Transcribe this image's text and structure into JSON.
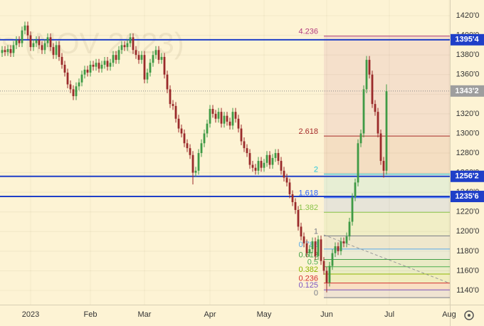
{
  "chart_data": {
    "type": "candlestick",
    "watermark": "rs (NOV 2023)",
    "up_color": "#3f9a45",
    "down_color": "#9a2a2a",
    "xlim": [
      -10.75,
      147.25
    ],
    "xticks": [
      {
        "value": 0,
        "label": "2023"
      },
      {
        "value": 21,
        "label": "Feb"
      },
      {
        "value": 40,
        "label": "Mar"
      },
      {
        "value": 63,
        "label": "Apr"
      },
      {
        "value": 82,
        "label": "May"
      },
      {
        "value": 104,
        "label": "Jun"
      },
      {
        "value": 126,
        "label": "Jul"
      },
      {
        "value": 147,
        "label": "Aug"
      }
    ],
    "ylim": [
      1125.5,
      1436
    ],
    "yticks": [
      {
        "value": 1140,
        "label": "1140'0"
      },
      {
        "value": 1160,
        "label": "1160'0"
      },
      {
        "value": 1180,
        "label": "1180'0"
      },
      {
        "value": 1200,
        "label": "1200'0"
      },
      {
        "value": 1220,
        "label": "1220'0"
      },
      {
        "value": 1240,
        "label": "1240'0"
      },
      {
        "value": 1260,
        "label": "1260'0"
      },
      {
        "value": 1280,
        "label": "1280'0"
      },
      {
        "value": 1300,
        "label": "1300'0"
      },
      {
        "value": 1320,
        "label": "1320'0"
      },
      {
        "value": 1340,
        "label": "1340'0"
      },
      {
        "value": 1360,
        "label": "1360'0"
      },
      {
        "value": 1380,
        "label": "1380'0"
      },
      {
        "value": 1400,
        "label": "1400'0"
      },
      {
        "value": 1420,
        "label": "1420'0"
      }
    ],
    "grid": true,
    "x": [
      -10,
      -9,
      -8,
      -7,
      -6,
      -5,
      -4,
      -3,
      -2,
      -1,
      0,
      1,
      2,
      3,
      4,
      5,
      6,
      7,
      8,
      9,
      10,
      11,
      12,
      13,
      14,
      15,
      16,
      17,
      18,
      19,
      20,
      21,
      22,
      23,
      24,
      25,
      26,
      27,
      28,
      29,
      30,
      31,
      32,
      33,
      34,
      35,
      36,
      37,
      38,
      39,
      40,
      41,
      42,
      43,
      44,
      45,
      46,
      47,
      48,
      49,
      50,
      51,
      52,
      53,
      54,
      55,
      56,
      57,
      58,
      59,
      60,
      61,
      62,
      63,
      64,
      65,
      66,
      67,
      68,
      69,
      70,
      71,
      72,
      73,
      74,
      75,
      76,
      77,
      78,
      79,
      80,
      81,
      82,
      83,
      84,
      85,
      86,
      87,
      88,
      89,
      90,
      91,
      92,
      93,
      94,
      95,
      96,
      97,
      98,
      99,
      100,
      101,
      102,
      103,
      104,
      105,
      106,
      107,
      108,
      109,
      110,
      111,
      112,
      113,
      114,
      115,
      116,
      117,
      118,
      119,
      120,
      121,
      122,
      123,
      124,
      125
    ],
    "open": [
      1382,
      1385,
      1383,
      1386,
      1382,
      1390,
      1395,
      1392,
      1405,
      1410,
      1400,
      1388,
      1392,
      1395,
      1390,
      1385,
      1392,
      1398,
      1388,
      1380,
      1390,
      1378,
      1370,
      1362,
      1350,
      1345,
      1338,
      1348,
      1352,
      1360,
      1365,
      1362,
      1370,
      1368,
      1372,
      1366,
      1370,
      1374,
      1368,
      1372,
      1380,
      1375,
      1385,
      1390,
      1388,
      1392,
      1398,
      1385,
      1380,
      1375,
      1380,
      1355,
      1362,
      1372,
      1380,
      1385,
      1375,
      1378,
      1360,
      1345,
      1330,
      1328,
      1315,
      1305,
      1300,
      1290,
      1285,
      1278,
      1260,
      1262,
      1280,
      1290,
      1300,
      1310,
      1325,
      1320,
      1315,
      1322,
      1310,
      1318,
      1312,
      1308,
      1322,
      1315,
      1305,
      1292,
      1285,
      1280,
      1268,
      1265,
      1262,
      1272,
      1265,
      1270,
      1278,
      1268,
      1275,
      1280,
      1272,
      1262,
      1255,
      1250,
      1238,
      1230,
      1222,
      1205,
      1195,
      1188,
      1178,
      1182,
      1190,
      1175,
      1192,
      1170,
      1160,
      1148,
      1165,
      1178,
      1185,
      1180,
      1190,
      1188,
      1195,
      1210,
      1235,
      1250,
      1290,
      1300,
      1345,
      1375,
      1360,
      1330,
      1322,
      1300,
      1272,
      1262
    ],
    "high": [
      1389,
      1389,
      1390,
      1390,
      1394,
      1399,
      1399,
      1409,
      1414,
      1414,
      1404,
      1396,
      1399,
      1399,
      1394,
      1396,
      1402,
      1402,
      1392,
      1394,
      1394,
      1382,
      1374,
      1366,
      1354,
      1349,
      1352,
      1356,
      1364,
      1369,
      1369,
      1374,
      1374,
      1376,
      1376,
      1374,
      1378,
      1378,
      1376,
      1384,
      1384,
      1389,
      1394,
      1394,
      1396,
      1402,
      1402,
      1389,
      1384,
      1384,
      1384,
      1366,
      1376,
      1384,
      1389,
      1389,
      1382,
      1382,
      1364,
      1349,
      1334,
      1332,
      1319,
      1309,
      1304,
      1294,
      1289,
      1282,
      1266,
      1284,
      1294,
      1304,
      1314,
      1329,
      1329,
      1324,
      1326,
      1326,
      1322,
      1322,
      1316,
      1326,
      1326,
      1319,
      1309,
      1296,
      1289,
      1284,
      1272,
      1269,
      1276,
      1276,
      1274,
      1282,
      1282,
      1279,
      1284,
      1284,
      1276,
      1266,
      1259,
      1254,
      1242,
      1234,
      1226,
      1209,
      1199,
      1192,
      1186,
      1194,
      1194,
      1196,
      1196,
      1174,
      1164,
      1169,
      1182,
      1189,
      1189,
      1194,
      1194,
      1199,
      1214,
      1239,
      1254,
      1294,
      1304,
      1349,
      1379,
      1379,
      1364,
      1334,
      1326,
      1304,
      1276,
      1350
    ],
    "low": [
      1378,
      1379,
      1379,
      1378,
      1378,
      1386,
      1388,
      1388,
      1401,
      1396,
      1384,
      1384,
      1388,
      1386,
      1381,
      1381,
      1388,
      1384,
      1376,
      1376,
      1374,
      1366,
      1358,
      1346,
      1341,
      1334,
      1334,
      1344,
      1348,
      1356,
      1358,
      1358,
      1364,
      1364,
      1362,
      1362,
      1366,
      1364,
      1364,
      1368,
      1371,
      1371,
      1381,
      1384,
      1384,
      1388,
      1381,
      1376,
      1371,
      1371,
      1351,
      1351,
      1358,
      1368,
      1376,
      1371,
      1371,
      1356,
      1341,
      1326,
      1324,
      1311,
      1301,
      1296,
      1286,
      1281,
      1274,
      1248,
      1256,
      1258,
      1276,
      1286,
      1296,
      1306,
      1316,
      1311,
      1311,
      1306,
      1306,
      1308,
      1304,
      1304,
      1311,
      1301,
      1288,
      1281,
      1276,
      1264,
      1261,
      1258,
      1258,
      1261,
      1261,
      1266,
      1264,
      1264,
      1271,
      1268,
      1258,
      1251,
      1246,
      1234,
      1226,
      1218,
      1201,
      1191,
      1184,
      1174,
      1174,
      1178,
      1171,
      1171,
      1166,
      1156,
      1138,
      1144,
      1161,
      1174,
      1176,
      1176,
      1184,
      1184,
      1191,
      1206,
      1231,
      1246,
      1286,
      1296,
      1341,
      1356,
      1326,
      1318,
      1296,
      1268,
      1255,
      1258
    ],
    "close": [
      1385,
      1383,
      1386,
      1382,
      1390,
      1395,
      1392,
      1405,
      1410,
      1400,
      1388,
      1392,
      1395,
      1390,
      1385,
      1392,
      1398,
      1388,
      1380,
      1390,
      1378,
      1370,
      1362,
      1350,
      1345,
      1338,
      1348,
      1352,
      1360,
      1365,
      1362,
      1370,
      1368,
      1372,
      1366,
      1370,
      1374,
      1368,
      1372,
      1380,
      1375,
      1385,
      1390,
      1388,
      1392,
      1398,
      1385,
      1380,
      1375,
      1380,
      1355,
      1362,
      1372,
      1380,
      1385,
      1375,
      1378,
      1360,
      1345,
      1330,
      1328,
      1315,
      1305,
      1300,
      1290,
      1285,
      1278,
      1260,
      1262,
      1280,
      1290,
      1300,
      1310,
      1325,
      1320,
      1315,
      1322,
      1310,
      1318,
      1312,
      1308,
      1322,
      1315,
      1305,
      1292,
      1285,
      1280,
      1268,
      1265,
      1262,
      1272,
      1265,
      1270,
      1278,
      1268,
      1275,
      1280,
      1272,
      1262,
      1255,
      1250,
      1238,
      1230,
      1222,
      1205,
      1195,
      1188,
      1178,
      1182,
      1190,
      1175,
      1192,
      1170,
      1160,
      1148,
      1165,
      1178,
      1185,
      1180,
      1190,
      1188,
      1195,
      1210,
      1235,
      1250,
      1290,
      1300,
      1345,
      1375,
      1360,
      1330,
      1322,
      1300,
      1272,
      1262,
      1343
    ],
    "fib": {
      "low": 1132.7,
      "high": 1195.6,
      "levels": [
        {
          "level": 4.236,
          "color": "#b23a7e"
        },
        {
          "level": 2.618,
          "color": "#a62a2a"
        },
        {
          "level": 2,
          "color": "#26c6da"
        },
        {
          "level": 1.618,
          "color": "#2962ff"
        },
        {
          "level": 1.382,
          "color": "#8bc34a"
        },
        {
          "level": 1,
          "color": "#787b86"
        },
        {
          "level": 0.786,
          "color": "#5aa9e6"
        },
        {
          "level": 0.618,
          "color": "#43a047"
        },
        {
          "level": 0.5,
          "color": "#4caf50"
        },
        {
          "level": 0.382,
          "color": "#8db600"
        },
        {
          "level": 0.236,
          "color": "#d32f2f"
        },
        {
          "level": 0.125,
          "color": "#7e57c2"
        },
        {
          "level": 0,
          "color": "#787b86"
        }
      ]
    },
    "price_lines": [
      {
        "value": 1395.5,
        "label": "1395'4",
        "color": "#1f3fc8"
      },
      {
        "value": 1256.25,
        "label": "1256'2",
        "color": "#1f3fc8"
      },
      {
        "value": 1235.75,
        "label": "1235'6",
        "color": "#1f3fc8"
      }
    ],
    "last_price": {
      "value": 1343.25,
      "label": "1343'2",
      "color": "#9e9e9e"
    }
  }
}
